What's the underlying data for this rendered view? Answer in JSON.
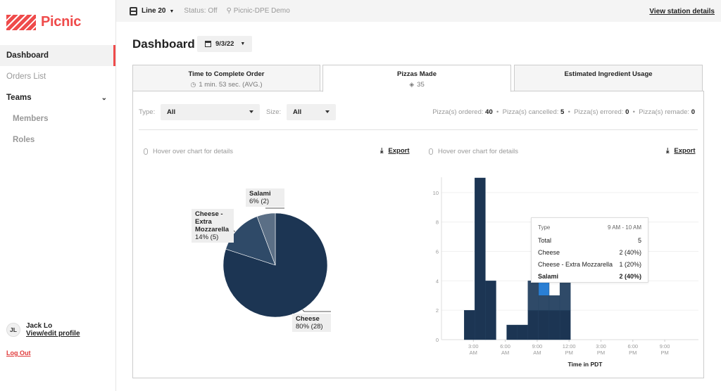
{
  "app": {
    "name": "Picnic"
  },
  "sidebar": {
    "items": [
      {
        "label": "Dashboard"
      },
      {
        "label": "Orders List"
      },
      {
        "label": "Teams"
      },
      {
        "label": "Members"
      },
      {
        "label": "Roles"
      }
    ],
    "user": {
      "initials": "JL",
      "name": "Jack Lo",
      "profile_link": "View/edit profile"
    },
    "logout": "Log Out"
  },
  "topbar": {
    "line": "Line 20",
    "status": "Status: Off",
    "station": "Picnic-DPE Demo",
    "view_station": "View station details"
  },
  "page": {
    "title": "Dashboard",
    "date": "9/3/22"
  },
  "tabs": [
    {
      "title": "Time to Complete Order",
      "sub": "1 min. 53 sec. (AVG.)",
      "icon": "clock-icon"
    },
    {
      "title": "Pizzas Made",
      "sub": "35",
      "icon": "pizza-icon"
    },
    {
      "title": "Estimated Ingredient Usage"
    }
  ],
  "filters": {
    "type_label": "Type:",
    "type_value": "All",
    "size_label": "Size:",
    "size_value": "All"
  },
  "counts": {
    "ordered_label": "Pizza(s) ordered:",
    "ordered": "40",
    "cancelled_label": "Pizza(s) cancelled:",
    "cancelled": "5",
    "errored_label": "Pizza(s) errored:",
    "errored": "0",
    "remade_label": "Pizza(s) remade:",
    "remade": "0"
  },
  "hover_note": "Hover over chart for details",
  "export_label": "Export",
  "colors": {
    "accent": "#ef4b4b",
    "navy": "#1c3553",
    "mid": "#2f4a68",
    "light": "#5b6f86",
    "highlight": "#2a7fd4"
  },
  "chart_data": [
    {
      "type": "pie",
      "slices": [
        {
          "name": "Cheese",
          "value": 28,
          "label": "80% (28)"
        },
        {
          "name": "Cheese - Extra Mozzarella",
          "value": 5,
          "label": "14% (5)"
        },
        {
          "name": "Salami",
          "value": 2,
          "label": "6% (2)"
        }
      ]
    },
    {
      "type": "bar",
      "xlabel": "Time in PDT",
      "ylim": [
        0,
        11
      ],
      "yticks": [
        "0",
        "2",
        "4",
        "6",
        "8",
        "10"
      ],
      "xticks": [
        [
          "3:00",
          "AM"
        ],
        [
          "6:00",
          "AM"
        ],
        [
          "9:00",
          "AM"
        ],
        [
          "12:00",
          "PM"
        ],
        [
          "3:00",
          "PM"
        ],
        [
          "6:00",
          "PM"
        ],
        [
          "9:00",
          "PM"
        ]
      ],
      "bins": [
        {
          "start": 2,
          "cheese": 2,
          "mozz": 0,
          "salami": 0
        },
        {
          "start": 3,
          "cheese": 11,
          "mozz": 0,
          "salami": 0
        },
        {
          "start": 4,
          "cheese": 4,
          "mozz": 0,
          "salami": 0
        },
        {
          "start": 6,
          "cheese": 1,
          "mozz": 0,
          "salami": 0
        },
        {
          "start": 7,
          "cheese": 1,
          "mozz": 0,
          "salami": 0
        },
        {
          "start": 8,
          "cheese": 2,
          "mozz": 2,
          "salami": 0
        },
        {
          "start": 9,
          "cheese": 2,
          "mozz": 1,
          "salami": 2
        },
        {
          "start": 10,
          "cheese": 2,
          "mozz": 1,
          "salami": 0
        },
        {
          "start": 11,
          "cheese": 2,
          "mozz": 2,
          "salami": 0
        }
      ]
    }
  ],
  "tooltip": {
    "type_label": "Type",
    "range": "9 AM - 10 AM",
    "rows": [
      {
        "label": "Total",
        "value": "5"
      },
      {
        "label": "Cheese",
        "value": "2 (40%)"
      },
      {
        "label": "Cheese - Extra Mozzarella",
        "value": "1 (20%)"
      },
      {
        "label": "Salami",
        "value": "2 (40%)"
      }
    ]
  }
}
